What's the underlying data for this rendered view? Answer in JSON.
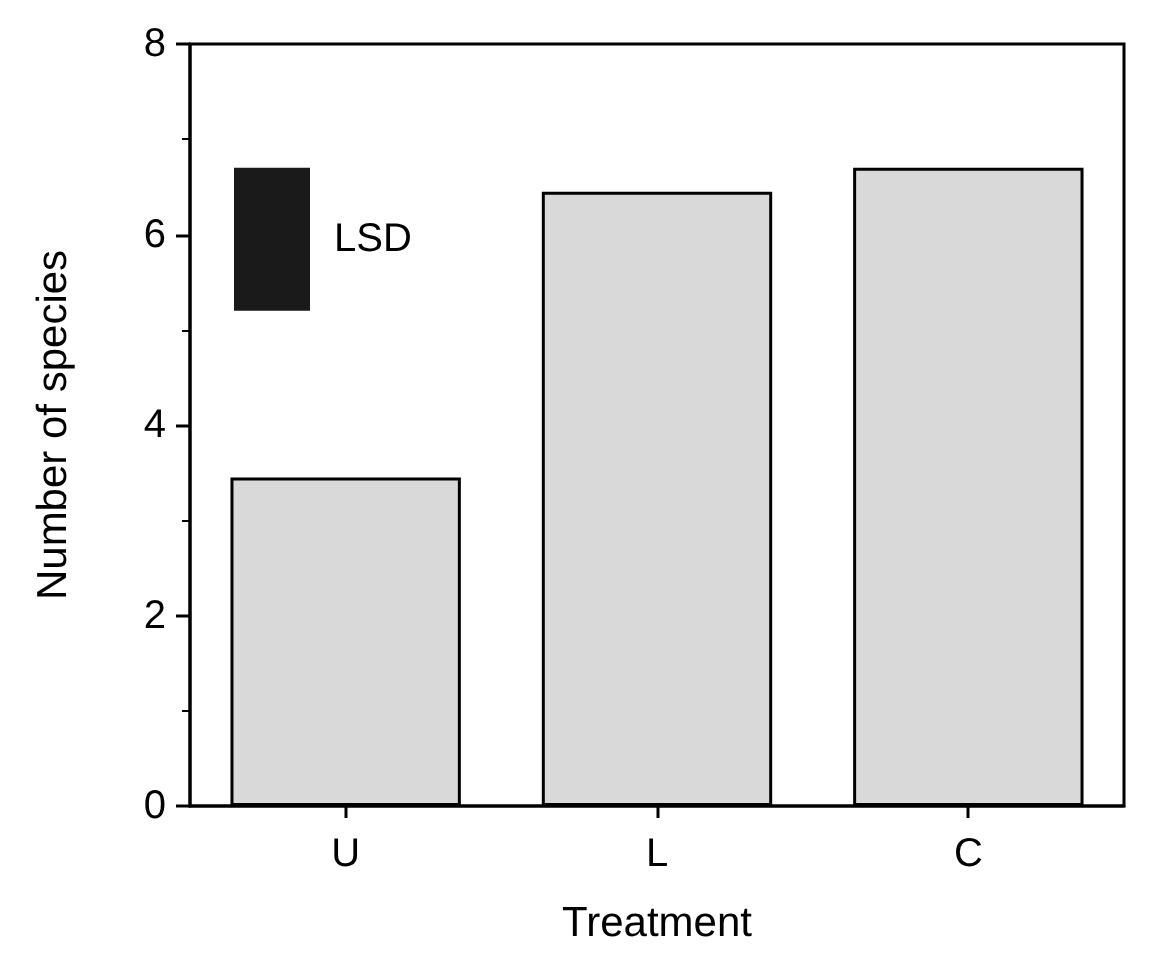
{
  "chart_data": {
    "type": "bar",
    "xlabel": "Treatment",
    "ylabel": "Number of species",
    "categories": [
      "U",
      "L",
      "C"
    ],
    "values": [
      3.45,
      6.45,
      6.7
    ],
    "color": "#d9d9d9",
    "ylim": [
      0,
      8
    ],
    "yticks": [
      0,
      2,
      4,
      6,
      8
    ],
    "grid": false,
    "bands": [
      {
        "axis": "y",
        "from": 5.2,
        "to": 6.7,
        "label": "LSD",
        "color": "#1a1a1a"
      }
    ]
  }
}
